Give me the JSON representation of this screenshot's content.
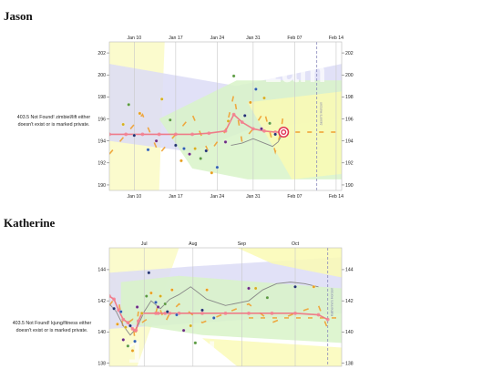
{
  "sections": [
    {
      "name": "Jason",
      "error_line1": "403.5 Not Found! zimbiel/lift either",
      "error_line2": "doesn't exist or is marked private."
    },
    {
      "name": "Katherine",
      "error_line1": "403.5 Not Found! kjung/fitness either",
      "error_line2": "doesn't exist or is marked private."
    }
  ],
  "chart_data": [
    {
      "type": "scatter",
      "title": "",
      "x_tick_labels": [
        "Jan 10",
        "Jan 17",
        "Jan 24",
        "Jan 31",
        "Feb 07",
        "Feb 14"
      ],
      "y_tick_labels": [
        "190",
        "192",
        "194",
        "196",
        "198",
        "200",
        "202"
      ],
      "ylim": [
        189.5,
        203
      ],
      "xlim": [
        5,
        47
      ],
      "grid": true,
      "watermark": "1am",
      "vertical_marker_label": "Jason's Horizon",
      "series": [
        {
          "name": "",
          "kind": "points",
          "x": [
            7.5,
            8.5,
            9.5,
            10.5,
            12,
            13.5,
            14.5,
            16,
            17,
            18,
            18.5,
            19.5,
            20.5,
            21.5,
            22.5,
            23.5,
            24.5,
            26,
            26.5,
            27.5,
            29.5,
            30.5,
            31.5,
            32.5,
            33,
            34,
            35
          ],
          "y": [
            195.5,
            197.3,
            194.5,
            196.5,
            193.2,
            194,
            197.8,
            195.9,
            193.6,
            192.2,
            193.3,
            192.8,
            193.3,
            192.4,
            193.1,
            191.1,
            191.6,
            193.9,
            195.8,
            199.9,
            196.3,
            197.5,
            198.7,
            195.1,
            197.9,
            195.6,
            194.6
          ]
        },
        {
          "name": "",
          "kind": "moving-average",
          "x": [
            5,
            8,
            11,
            14,
            17,
            20,
            23,
            26,
            27.5,
            29,
            31,
            33,
            35,
            36,
            36.5
          ],
          "y": [
            194.6,
            194.6,
            194.6,
            194.6,
            194.6,
            194.6,
            194.7,
            194.9,
            196.4,
            195.7,
            195.1,
            194.9,
            194.8,
            194.8,
            194.8
          ]
        },
        {
          "name": "",
          "kind": "trend",
          "x": [
            27,
            29,
            31,
            33,
            34.5,
            35.5,
            36.5
          ],
          "y": [
            193.6,
            193.8,
            194.2,
            193.8,
            193.5,
            193.9,
            194.8
          ]
        }
      ]
    },
    {
      "type": "scatter",
      "title": "",
      "x_tick_labels": [
        "Jul",
        "Aug",
        "Sep",
        "Oct"
      ],
      "y_tick_labels": [
        "138",
        "140",
        "142",
        "144"
      ],
      "ylim": [
        137.8,
        145.4
      ],
      "xlim": [
        0,
        100
      ],
      "grid": true,
      "watermark": "12am!",
      "vertical_marker_label": "Katherine's Horizon",
      "series": [
        {
          "name": "",
          "kind": "points",
          "x": [
            2,
            3.5,
            5,
            6,
            7,
            8,
            9,
            10,
            11,
            12,
            14,
            16,
            17,
            18,
            20,
            21,
            22,
            24,
            25,
            27,
            29,
            32,
            35,
            37,
            40,
            42,
            45,
            60,
            63,
            68,
            80,
            88
          ],
          "y": [
            141.5,
            140.5,
            141.3,
            139.5,
            140.3,
            139.1,
            140.4,
            138.8,
            139.4,
            141.6,
            141.2,
            142.3,
            143.8,
            142.5,
            141.9,
            141.6,
            142.3,
            141.8,
            141.3,
            142.7,
            141.1,
            140.1,
            140.4,
            139.3,
            141.4,
            142.7,
            140.9,
            142.8,
            142.8,
            142.2,
            142.9,
            142.9
          ]
        },
        {
          "name": "",
          "kind": "moving-average",
          "x": [
            0,
            2,
            4,
            6,
            8,
            10,
            11,
            11.5,
            12.5,
            14,
            20,
            21,
            24,
            26,
            30,
            40,
            50,
            60,
            70,
            80,
            90,
            94
          ],
          "y": [
            142.3,
            142.1,
            141.4,
            140.8,
            140.6,
            140.2,
            140.1,
            140.1,
            140.7,
            141.2,
            141.2,
            141.2,
            141.2,
            141.2,
            141.2,
            141.2,
            141.2,
            141.2,
            141.2,
            141.2,
            141.1,
            140.8
          ]
        },
        {
          "name": "",
          "kind": "trend",
          "x": [
            0,
            3,
            6,
            9,
            12,
            15,
            18,
            22,
            26,
            30,
            35,
            42,
            50,
            60,
            66,
            72,
            78,
            84,
            90
          ],
          "y": [
            141.8,
            141.3,
            140.4,
            139.8,
            140.3,
            141.3,
            142.0,
            141.5,
            142.1,
            142.4,
            142.9,
            142.1,
            141.7,
            142.0,
            142.7,
            143.1,
            143.2,
            143.1,
            142.9
          ]
        }
      ]
    }
  ]
}
